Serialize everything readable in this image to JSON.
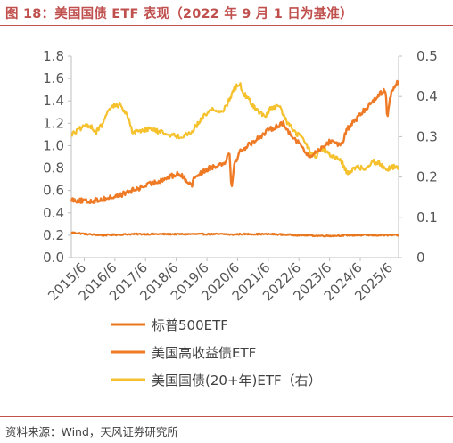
{
  "header": {
    "title": "图 18：美国国债 ETF 表现（2022 年 9 月 1 日为基准）"
  },
  "footer": {
    "source": "资料来源：Wind，天风证券研究所"
  },
  "colors": {
    "accent": "#c0504d",
    "series": [
      "#e8771e",
      "#ef7a26",
      "#f5c12d"
    ]
  },
  "chart_data": {
    "type": "line",
    "title": "",
    "xlabel": "",
    "ylabel": "",
    "ylim": [
      0,
      1.8
    ],
    "y2lim": [
      0,
      0.5
    ],
    "yticks": [
      "0.0",
      "0.2",
      "0.4",
      "0.6",
      "0.8",
      "1.0",
      "1.2",
      "1.4",
      "1.6",
      "1.8"
    ],
    "y2ticks": [
      "0",
      "0.1",
      "0.2",
      "0.3",
      "0.4",
      "0.5"
    ],
    "xticks": [
      "2015/6",
      "2016/6",
      "2017/6",
      "2018/6",
      "2019/6",
      "2020/6",
      "2021/6",
      "2022/6",
      "2023/6",
      "2024/6",
      "2025/6"
    ],
    "grid": false,
    "legend": "bottom",
    "series": [
      {
        "name": "标普500ETF",
        "axis": "left",
        "color": "#e8771e",
        "x": [
          2015.0,
          2015.5,
          2016.0,
          2016.5,
          2017.0,
          2017.5,
          2018.0,
          2018.5,
          2019.0,
          2019.5,
          2020.0,
          2020.2,
          2020.5,
          2021.0,
          2021.5,
          2022.0,
          2022.5,
          2022.67,
          2023.0,
          2023.5,
          2024.0,
          2024.5,
          2025.0,
          2025.5,
          2025.67
        ],
        "values": [
          0.225,
          0.21,
          0.2,
          0.205,
          0.21,
          0.21,
          0.21,
          0.21,
          0.21,
          0.21,
          0.21,
          0.205,
          0.21,
          0.21,
          0.21,
          0.205,
          0.2,
          0.2,
          0.195,
          0.195,
          0.2,
          0.2,
          0.2,
          0.2,
          0.2
        ]
      },
      {
        "name": "美国高收益债ETF",
        "axis": "left",
        "color": "#ef7a26",
        "x": [
          2015.0,
          2015.5,
          2016.0,
          2016.5,
          2017.0,
          2017.5,
          2018.0,
          2018.5,
          2018.95,
          2019.0,
          2019.5,
          2020.0,
          2020.15,
          2020.22,
          2020.3,
          2020.5,
          2021.0,
          2021.5,
          2021.9,
          2022.0,
          2022.5,
          2022.67,
          2022.8,
          2023.0,
          2023.5,
          2023.8,
          2024.0,
          2024.5,
          2025.0,
          2025.25,
          2025.3,
          2025.4,
          2025.5,
          2025.67
        ],
        "values": [
          0.52,
          0.5,
          0.52,
          0.55,
          0.6,
          0.65,
          0.7,
          0.75,
          0.65,
          0.72,
          0.8,
          0.85,
          0.95,
          0.62,
          0.82,
          0.95,
          1.05,
          1.15,
          1.2,
          1.15,
          1.0,
          0.92,
          0.9,
          0.95,
          1.05,
          1.0,
          1.15,
          1.3,
          1.45,
          1.5,
          1.25,
          1.45,
          1.5,
          1.58
        ]
      },
      {
        "name": "美国国债(20+年)ETF（右）",
        "axis": "right",
        "color": "#f5c12d",
        "x": [
          2015.0,
          2015.3,
          2015.6,
          2015.8,
          2016.0,
          2016.3,
          2016.6,
          2016.9,
          2017.0,
          2017.5,
          2018.0,
          2018.5,
          2018.9,
          2019.3,
          2019.6,
          2019.8,
          2020.0,
          2020.2,
          2020.3,
          2020.5,
          2020.6,
          2020.7,
          2021.0,
          2021.3,
          2021.5,
          2021.8,
          2022.0,
          2022.3,
          2022.5,
          2022.67,
          2022.8,
          2022.95,
          2023.2,
          2023.5,
          2023.8,
          2024.0,
          2024.3,
          2024.6,
          2024.8,
          2025.0,
          2025.3,
          2025.5,
          2025.67
        ],
        "values": [
          0.305,
          0.32,
          0.33,
          0.31,
          0.33,
          0.375,
          0.38,
          0.34,
          0.31,
          0.32,
          0.31,
          0.3,
          0.31,
          0.35,
          0.37,
          0.36,
          0.37,
          0.4,
          0.42,
          0.43,
          0.41,
          0.4,
          0.37,
          0.35,
          0.37,
          0.375,
          0.34,
          0.31,
          0.3,
          0.28,
          0.26,
          0.25,
          0.27,
          0.25,
          0.24,
          0.21,
          0.225,
          0.22,
          0.24,
          0.235,
          0.22,
          0.225,
          0.225
        ]
      }
    ]
  }
}
